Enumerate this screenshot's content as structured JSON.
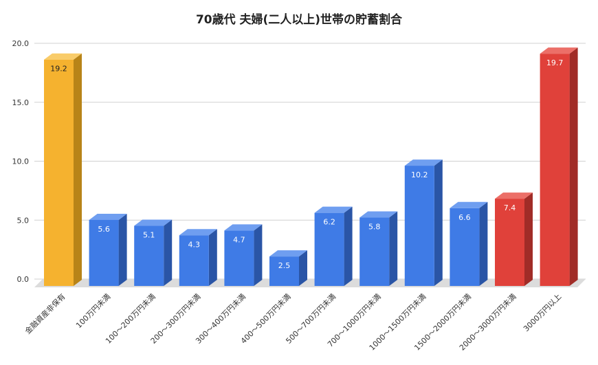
{
  "chart_data": {
    "type": "bar",
    "title": "70歳代 夫婦(二人以上)世帯の貯蓄割合",
    "xlabel": "",
    "ylabel": "",
    "ylim": [
      0,
      20
    ],
    "yticks": [
      "0.0",
      "5.0",
      "10.0",
      "15.0",
      "20.0"
    ],
    "grid": true,
    "categories": [
      "金融資産非保有",
      "100万円未満",
      "100～200万円未満",
      "200～300万円未満",
      "300～400万円未満",
      "400～500万円未満",
      "500～700万円未満",
      "700～1000万円未満",
      "1000～1500万円未満",
      "1500～2000万円未満",
      "2000～3000万円未満",
      "3000万円以上"
    ],
    "values": [
      19.2,
      5.6,
      5.1,
      4.3,
      4.7,
      2.5,
      6.2,
      5.8,
      10.2,
      6.6,
      7.4,
      19.7
    ],
    "value_labels": [
      "19.2",
      "5.6",
      "5.1",
      "4.3",
      "4.7",
      "2.5",
      "6.2",
      "5.8",
      "10.2",
      "6.6",
      "7.4",
      "19.7"
    ],
    "colors": {
      "yellow": {
        "front": "#f5b22f",
        "side": "#b88418",
        "top": "#f9cc6a",
        "label": "#222222"
      },
      "blue": {
        "front": "#3f7be6",
        "side": "#2a55a6",
        "top": "#6f9ef0",
        "label": "#ffffff"
      },
      "red": {
        "front": "#e0413a",
        "side": "#a12c27",
        "top": "#ec6f68",
        "label": "#ffffff"
      }
    },
    "bar_colors": [
      "yellow",
      "blue",
      "blue",
      "blue",
      "blue",
      "blue",
      "blue",
      "blue",
      "blue",
      "blue",
      "red",
      "red"
    ]
  }
}
